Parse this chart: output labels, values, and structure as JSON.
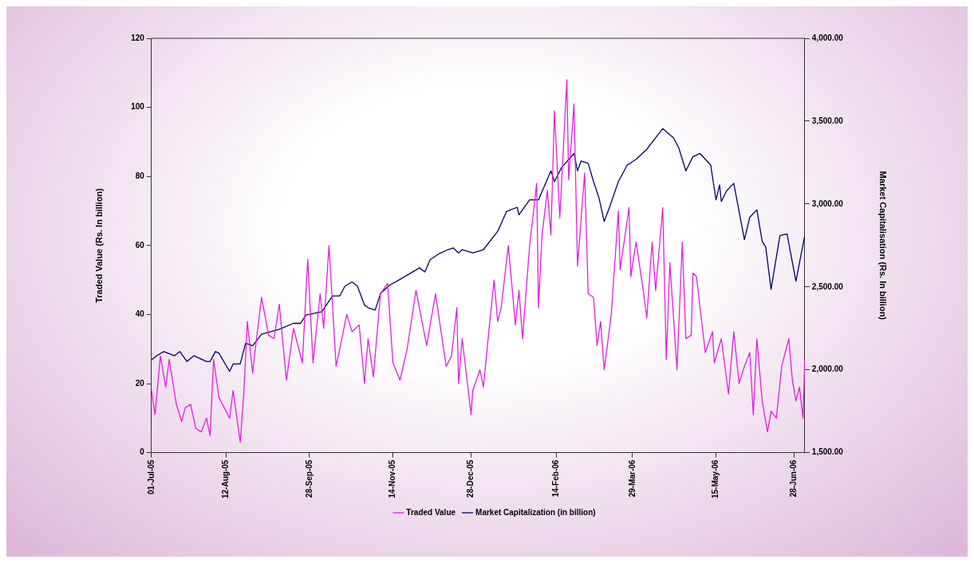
{
  "chart_data": {
    "type": "line",
    "ylabel": "Traded Value (Rs. In billion)",
    "y2label": "Market Capitalisation (Rs. In billion)",
    "xlim": [
      "2005-07-01",
      "2006-07-04"
    ],
    "xticks": [
      {
        "value": "2005-07-01",
        "label": "01-Jul-05"
      },
      {
        "value": "2005-08-12",
        "label": "12-Aug-05"
      },
      {
        "value": "2005-09-28",
        "label": "28-Sep-05"
      },
      {
        "value": "2005-11-14",
        "label": "14-Nov-05"
      },
      {
        "value": "2005-12-28",
        "label": "28-Dec-05"
      },
      {
        "value": "2006-02-14",
        "label": "14-Feb-06"
      },
      {
        "value": "2006-03-29",
        "label": "29-Mar-06"
      },
      {
        "value": "2006-05-15",
        "label": "15-May-06"
      },
      {
        "value": "2006-06-28",
        "label": "28-Jun-06"
      }
    ],
    "ylim": [
      0,
      120
    ],
    "yticks": [
      0,
      20,
      40,
      60,
      80,
      100,
      120
    ],
    "y2lim": [
      1500,
      4000
    ],
    "y2ticks": [
      {
        "value": 1500,
        "label": "1,500.00"
      },
      {
        "value": 2000,
        "label": "2,000.00"
      },
      {
        "value": 2500,
        "label": "2,500.00"
      },
      {
        "value": 3000,
        "label": "3,000.00"
      },
      {
        "value": 3500,
        "label": "3,500.00"
      },
      {
        "value": 4000,
        "label": "4,000.00"
      }
    ],
    "grid": false,
    "legend": "bottom",
    "marker": "none",
    "line_style": "solid",
    "series": [
      {
        "name": "Traded Value",
        "color": "#e020e0",
        "x": [
          "2005-07-01",
          "2005-07-03",
          "2005-07-06",
          "2005-07-09",
          "2005-07-11",
          "2005-07-15",
          "2005-07-18",
          "2005-07-20",
          "2005-07-23",
          "2005-07-26",
          "2005-07-29",
          "2005-08-01",
          "2005-08-03",
          "2005-08-05",
          "2005-08-08",
          "2005-08-14",
          "2005-08-16",
          "2005-08-20",
          "2005-08-22",
          "2005-08-24",
          "2005-08-27",
          "2005-08-28",
          "2005-09-01",
          "2005-09-05",
          "2005-09-08",
          "2005-09-11",
          "2005-09-15",
          "2005-09-19",
          "2005-09-24",
          "2005-09-27",
          "2005-09-30",
          "2005-10-04",
          "2005-10-06",
          "2005-10-09",
          "2005-10-13",
          "2005-10-19",
          "2005-10-22",
          "2005-10-26",
          "2005-10-29",
          "2005-10-31",
          "2005-11-03",
          "2005-11-07",
          "2005-11-11",
          "2005-11-14",
          "2005-11-18",
          "2005-11-22",
          "2005-11-27",
          "2005-12-03",
          "2005-12-08",
          "2005-12-14",
          "2005-12-17",
          "2005-12-20",
          "2005-12-21",
          "2005-12-23",
          "2005-12-26",
          "2005-12-28",
          "2005-12-29",
          "2006-01-02",
          "2006-01-04",
          "2006-01-07",
          "2006-01-10",
          "2006-01-12",
          "2006-01-14",
          "2006-01-18",
          "2006-01-22",
          "2006-01-24",
          "2006-01-26",
          "2006-01-30",
          "2006-02-03",
          "2006-02-04",
          "2006-02-06",
          "2006-02-09",
          "2006-02-11",
          "2006-02-13",
          "2006-02-16",
          "2006-02-20",
          "2006-02-21",
          "2006-02-24",
          "2006-02-26",
          "2006-03-02",
          "2006-03-04",
          "2006-03-07",
          "2006-03-09",
          "2006-03-11",
          "2006-03-13",
          "2006-03-17",
          "2006-03-21",
          "2006-03-22",
          "2006-03-27",
          "2006-03-28",
          "2006-03-31",
          "2006-04-04",
          "2006-04-06",
          "2006-04-09",
          "2006-04-11",
          "2006-04-15",
          "2006-04-17",
          "2006-04-19",
          "2006-04-23",
          "2006-04-26",
          "2006-04-28",
          "2006-05-01",
          "2006-05-02",
          "2006-05-04",
          "2006-05-06",
          "2006-05-09",
          "2006-05-13",
          "2006-05-14",
          "2006-05-18",
          "2006-05-22",
          "2006-05-25",
          "2006-05-28",
          "2006-05-31",
          "2006-06-03",
          "2006-06-05",
          "2006-06-07",
          "2006-06-10",
          "2006-06-13",
          "2006-06-15",
          "2006-06-18",
          "2006-06-21",
          "2006-06-25",
          "2006-06-27",
          "2006-06-29",
          "2006-07-01",
          "2006-07-03",
          "2006-07-04"
        ],
        "values": [
          18,
          11,
          28,
          19,
          27,
          14,
          9,
          13,
          14,
          7,
          6,
          10,
          5,
          27,
          16,
          10,
          18,
          3,
          17,
          38,
          23,
          28,
          45,
          34,
          33,
          43,
          21,
          36,
          26,
          56,
          26,
          46,
          36,
          60,
          25,
          40,
          35,
          37,
          20,
          33,
          22,
          46,
          49,
          26,
          21,
          30,
          47,
          31,
          46,
          25,
          28,
          42,
          20,
          33,
          20,
          11,
          18,
          24,
          19,
          35,
          50,
          38,
          42,
          60,
          37,
          47,
          33,
          60,
          78,
          42,
          63,
          76,
          63,
          99,
          68,
          108,
          79,
          101,
          54,
          81,
          46,
          45,
          31,
          38,
          24,
          40,
          70,
          53,
          71,
          51,
          61,
          47,
          39,
          61,
          47,
          71,
          27,
          55,
          24,
          61,
          33,
          34,
          52,
          51,
          42,
          29,
          35,
          26,
          33,
          17,
          35,
          20,
          25,
          29,
          11,
          33,
          15,
          6,
          12,
          10,
          25,
          33,
          21,
          15,
          19,
          10,
          27
        ]
      },
      {
        "name": "Market Capitalization (in billion)",
        "color": "#000066",
        "axis": "y2",
        "x": [
          "2005-07-01",
          "2005-07-04",
          "2005-07-08",
          "2005-07-14",
          "2005-07-17",
          "2005-07-21",
          "2005-07-25",
          "2005-08-01",
          "2005-08-03",
          "2005-08-06",
          "2005-08-08",
          "2005-08-14",
          "2005-08-16",
          "2005-08-20",
          "2005-08-23",
          "2005-08-27",
          "2005-09-01",
          "2005-09-11",
          "2005-09-19",
          "2005-09-23",
          "2005-09-26",
          "2005-10-05",
          "2005-10-11",
          "2005-10-15",
          "2005-10-18",
          "2005-10-22",
          "2005-10-25",
          "2005-10-29",
          "2005-10-31",
          "2005-11-04",
          "2005-11-07",
          "2005-11-12",
          "2005-11-18",
          "2005-11-25",
          "2005-11-29",
          "2005-12-02",
          "2005-12-05",
          "2005-12-10",
          "2005-12-15",
          "2005-12-18",
          "2005-12-21",
          "2005-12-23",
          "2005-12-29",
          "2006-01-04",
          "2006-01-12",
          "2006-01-17",
          "2006-01-23",
          "2006-01-24",
          "2006-01-30",
          "2006-02-04",
          "2006-02-11",
          "2006-02-13",
          "2006-02-17",
          "2006-02-24",
          "2006-02-26",
          "2006-02-28",
          "2006-03-04",
          "2006-03-07",
          "2006-03-10",
          "2006-03-13",
          "2006-03-16",
          "2006-03-21",
          "2006-03-26",
          "2006-03-31",
          "2006-04-06",
          "2006-04-11",
          "2006-04-15",
          "2006-04-21",
          "2006-04-24",
          "2006-04-28",
          "2006-05-02",
          "2006-05-06",
          "2006-05-12",
          "2006-05-15",
          "2006-05-17",
          "2006-05-18",
          "2006-05-21",
          "2006-05-25",
          "2006-05-31",
          "2006-06-03",
          "2006-06-07",
          "2006-06-10",
          "2006-06-12",
          "2006-06-15",
          "2006-06-20",
          "2006-06-24",
          "2006-06-29",
          "2006-07-04"
        ],
        "values": [
          2060,
          2085,
          2110,
          2085,
          2110,
          2050,
          2085,
          2050,
          2050,
          2110,
          2100,
          1990,
          2035,
          2035,
          2160,
          2145,
          2215,
          2245,
          2280,
          2280,
          2330,
          2350,
          2445,
          2445,
          2505,
          2530,
          2505,
          2390,
          2375,
          2360,
          2460,
          2510,
          2545,
          2590,
          2615,
          2590,
          2665,
          2700,
          2725,
          2735,
          2705,
          2725,
          2705,
          2725,
          2835,
          2955,
          2980,
          2935,
          3025,
          3025,
          3200,
          3135,
          3220,
          3305,
          3200,
          3260,
          3245,
          3135,
          3040,
          2895,
          2980,
          3135,
          3235,
          3270,
          3330,
          3400,
          3455,
          3400,
          3340,
          3200,
          3285,
          3305,
          3235,
          3025,
          3115,
          3015,
          3080,
          3125,
          2785,
          2920,
          2965,
          2775,
          2740,
          2485,
          2810,
          2820,
          2535,
          2810
        ]
      }
    ]
  }
}
